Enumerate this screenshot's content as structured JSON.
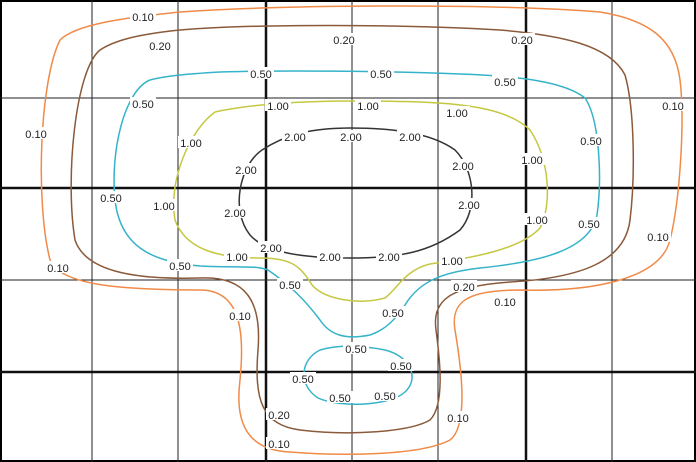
{
  "contours": [
    {
      "id": "c010",
      "color": "#f08a48",
      "labels": [
        {
          "text": "0.10",
          "at": [
            143,
            17
          ]
        },
        {
          "text": "0.10",
          "at": [
            36,
            134
          ]
        },
        {
          "text": "0.10",
          "at": [
            58,
            268
          ]
        },
        {
          "text": "0.10",
          "at": [
            240,
            316
          ]
        },
        {
          "text": "0.10",
          "at": [
            505,
            302
          ]
        },
        {
          "text": "0.10",
          "at": [
            673,
            106
          ]
        },
        {
          "text": "0.10",
          "at": [
            658,
            237
          ]
        },
        {
          "text": "0.10",
          "at": [
            458,
            418
          ]
        },
        {
          "text": "0.10",
          "at": [
            279,
            444
          ]
        }
      ]
    },
    {
      "id": "c020",
      "color": "#8a5a3a",
      "labels": [
        {
          "text": "0.20",
          "at": [
            160,
            46
          ]
        },
        {
          "text": "0.20",
          "at": [
            344,
            40
          ]
        },
        {
          "text": "0.20",
          "at": [
            522,
            40
          ]
        },
        {
          "text": "0.20",
          "at": [
            464,
            287
          ]
        },
        {
          "text": "0.20",
          "at": [
            279,
            415
          ]
        }
      ]
    },
    {
      "id": "c050",
      "color": "#35b3c9",
      "labels": [
        {
          "text": "0.50",
          "at": [
            261,
            74
          ]
        },
        {
          "text": "0.50",
          "at": [
            381,
            74
          ]
        },
        {
          "text": "0.50",
          "at": [
            505,
            82
          ]
        },
        {
          "text": "0.50",
          "at": [
            143,
            104
          ]
        },
        {
          "text": "0.50",
          "at": [
            591,
            141
          ]
        },
        {
          "text": "0.50",
          "at": [
            111,
            198
          ]
        },
        {
          "text": "0.50",
          "at": [
            589,
            224
          ]
        },
        {
          "text": "0.50",
          "at": [
            180,
            266
          ]
        },
        {
          "text": "0.50",
          "at": [
            290,
            285
          ]
        },
        {
          "text": "0.50",
          "at": [
            393,
            313
          ]
        },
        {
          "text": "0.50",
          "at": [
            356,
            349
          ]
        },
        {
          "text": "0.50",
          "at": [
            401,
            366
          ]
        },
        {
          "text": "0.50",
          "at": [
            303,
            379
          ]
        },
        {
          "text": "0.50",
          "at": [
            340,
            398
          ]
        },
        {
          "text": "0.50",
          "at": [
            385,
            396
          ]
        }
      ]
    },
    {
      "id": "c100",
      "color": "#c4c840",
      "labels": [
        {
          "text": "1.00",
          "at": [
            278,
            106
          ]
        },
        {
          "text": "1.00",
          "at": [
            368,
            106
          ]
        },
        {
          "text": "1.00",
          "at": [
            457,
            113
          ]
        },
        {
          "text": "1.00",
          "at": [
            191,
            143
          ]
        },
        {
          "text": "1.00",
          "at": [
            532,
            160
          ]
        },
        {
          "text": "1.00",
          "at": [
            164,
            206
          ]
        },
        {
          "text": "1.00",
          "at": [
            537,
            220
          ]
        },
        {
          "text": "1.00",
          "at": [
            237,
            257
          ]
        },
        {
          "text": "1.00",
          "at": [
            452,
            261
          ]
        }
      ]
    },
    {
      "id": "c200",
      "color": "#333333",
      "labels": [
        {
          "text": "2.00",
          "at": [
            295,
            137
          ]
        },
        {
          "text": "2.00",
          "at": [
            351,
            137
          ]
        },
        {
          "text": "2.00",
          "at": [
            410,
            137
          ]
        },
        {
          "text": "2.00",
          "at": [
            246,
            170
          ]
        },
        {
          "text": "2.00",
          "at": [
            463,
            166
          ]
        },
        {
          "text": "2.00",
          "at": [
            235,
            213
          ]
        },
        {
          "text": "2.00",
          "at": [
            469,
            205
          ]
        },
        {
          "text": "2.00",
          "at": [
            271,
            248
          ]
        },
        {
          "text": "2.00",
          "at": [
            330,
            257
          ]
        },
        {
          "text": "2.00",
          "at": [
            389,
            257
          ]
        }
      ]
    }
  ]
}
